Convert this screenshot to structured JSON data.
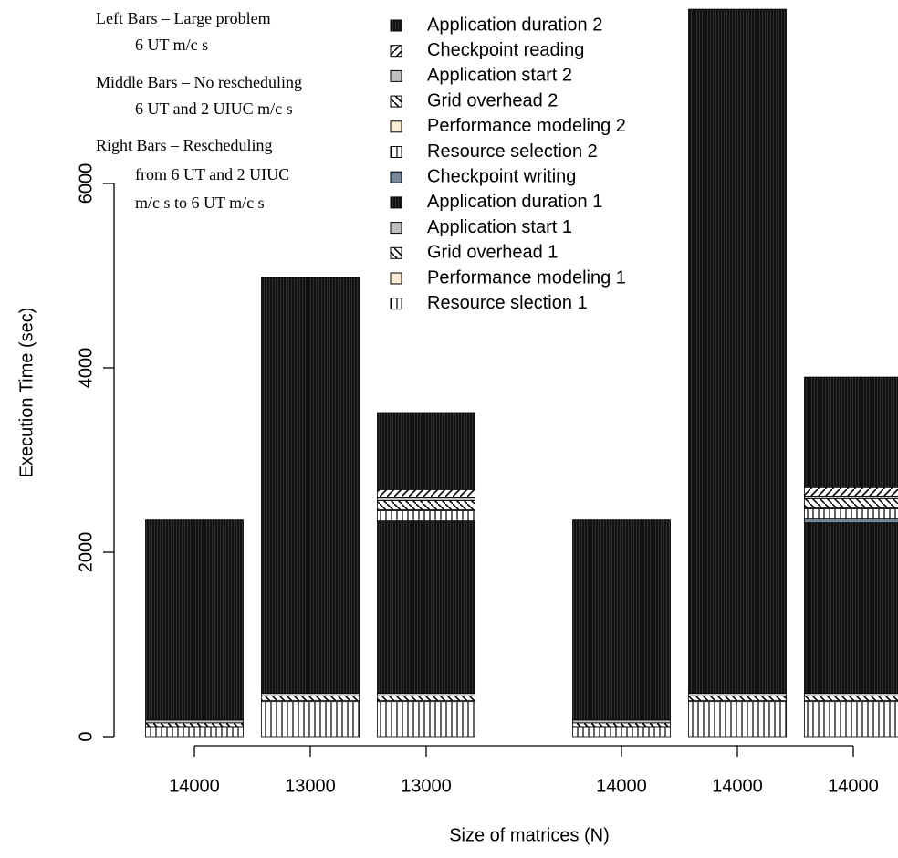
{
  "chart_data": {
    "type": "bar",
    "stacked": true,
    "annotations": [
      "Left Bars – Large problem",
      "6 UT m/c s",
      "Middle Bars – No rescheduling",
      "6 UT and 2 UIUC m/c s",
      "Right Bars – Rescheduling",
      "from 6 UT and 2 UIUC",
      "m/c s to 6 UT m/c s"
    ],
    "x_label": "Size of matrices (N)",
    "y_label": "Execution Time (sec)",
    "categories": [
      "14000",
      "13000",
      "13000",
      "14000",
      "14000",
      "14000"
    ],
    "ylim": [
      0,
      8000
    ],
    "yticks": [
      0,
      2000,
      4000,
      6000
    ],
    "series": [
      {
        "name": "Resource slection 1",
        "color": "#ffffff",
        "pattern": "vertical",
        "values": [
          100,
          380,
          380,
          100,
          380,
          380
        ]
      },
      {
        "name": "Performance modeling 1",
        "color": "#faebd7",
        "values": [
          10,
          10,
          10,
          10,
          10,
          10
        ]
      },
      {
        "name": "Grid overhead 1",
        "color": "#ffffff",
        "pattern": "backdiag",
        "values": [
          40,
          50,
          50,
          40,
          50,
          50
        ]
      },
      {
        "name": "Application start 1",
        "color": "#c0c0c0",
        "values": [
          30,
          30,
          30,
          30,
          30,
          30
        ]
      },
      {
        "name": "Application duration 1",
        "color": "#111111",
        "pattern": "dark",
        "values": [
          2170,
          4510,
          1860,
          2170,
          7420,
          1850
        ]
      },
      {
        "name": "Checkpoint writing",
        "color": "#778899",
        "values": [
          0,
          0,
          10,
          0,
          0,
          40
        ]
      },
      {
        "name": "Resource selection 2",
        "color": "#ffffff",
        "pattern": "vertical",
        "values": [
          0,
          0,
          110,
          0,
          0,
          110
        ]
      },
      {
        "name": "Performance modeling 2",
        "color": "#faebd7",
        "values": [
          0,
          0,
          10,
          0,
          0,
          10
        ]
      },
      {
        "name": "Grid overhead 2",
        "color": "#ffffff",
        "pattern": "backdiag",
        "values": [
          0,
          0,
          100,
          0,
          0,
          100
        ]
      },
      {
        "name": "Application start 2",
        "color": "#c0c0c0",
        "values": [
          0,
          0,
          30,
          0,
          0,
          30
        ]
      },
      {
        "name": "Checkpoint reading",
        "color": "#ffffff",
        "pattern": "diag",
        "values": [
          0,
          0,
          90,
          0,
          0,
          90
        ]
      },
      {
        "name": "Application duration 2",
        "color": "#111111",
        "pattern": "dark",
        "values": [
          0,
          0,
          835,
          0,
          0,
          1200
        ]
      }
    ]
  }
}
